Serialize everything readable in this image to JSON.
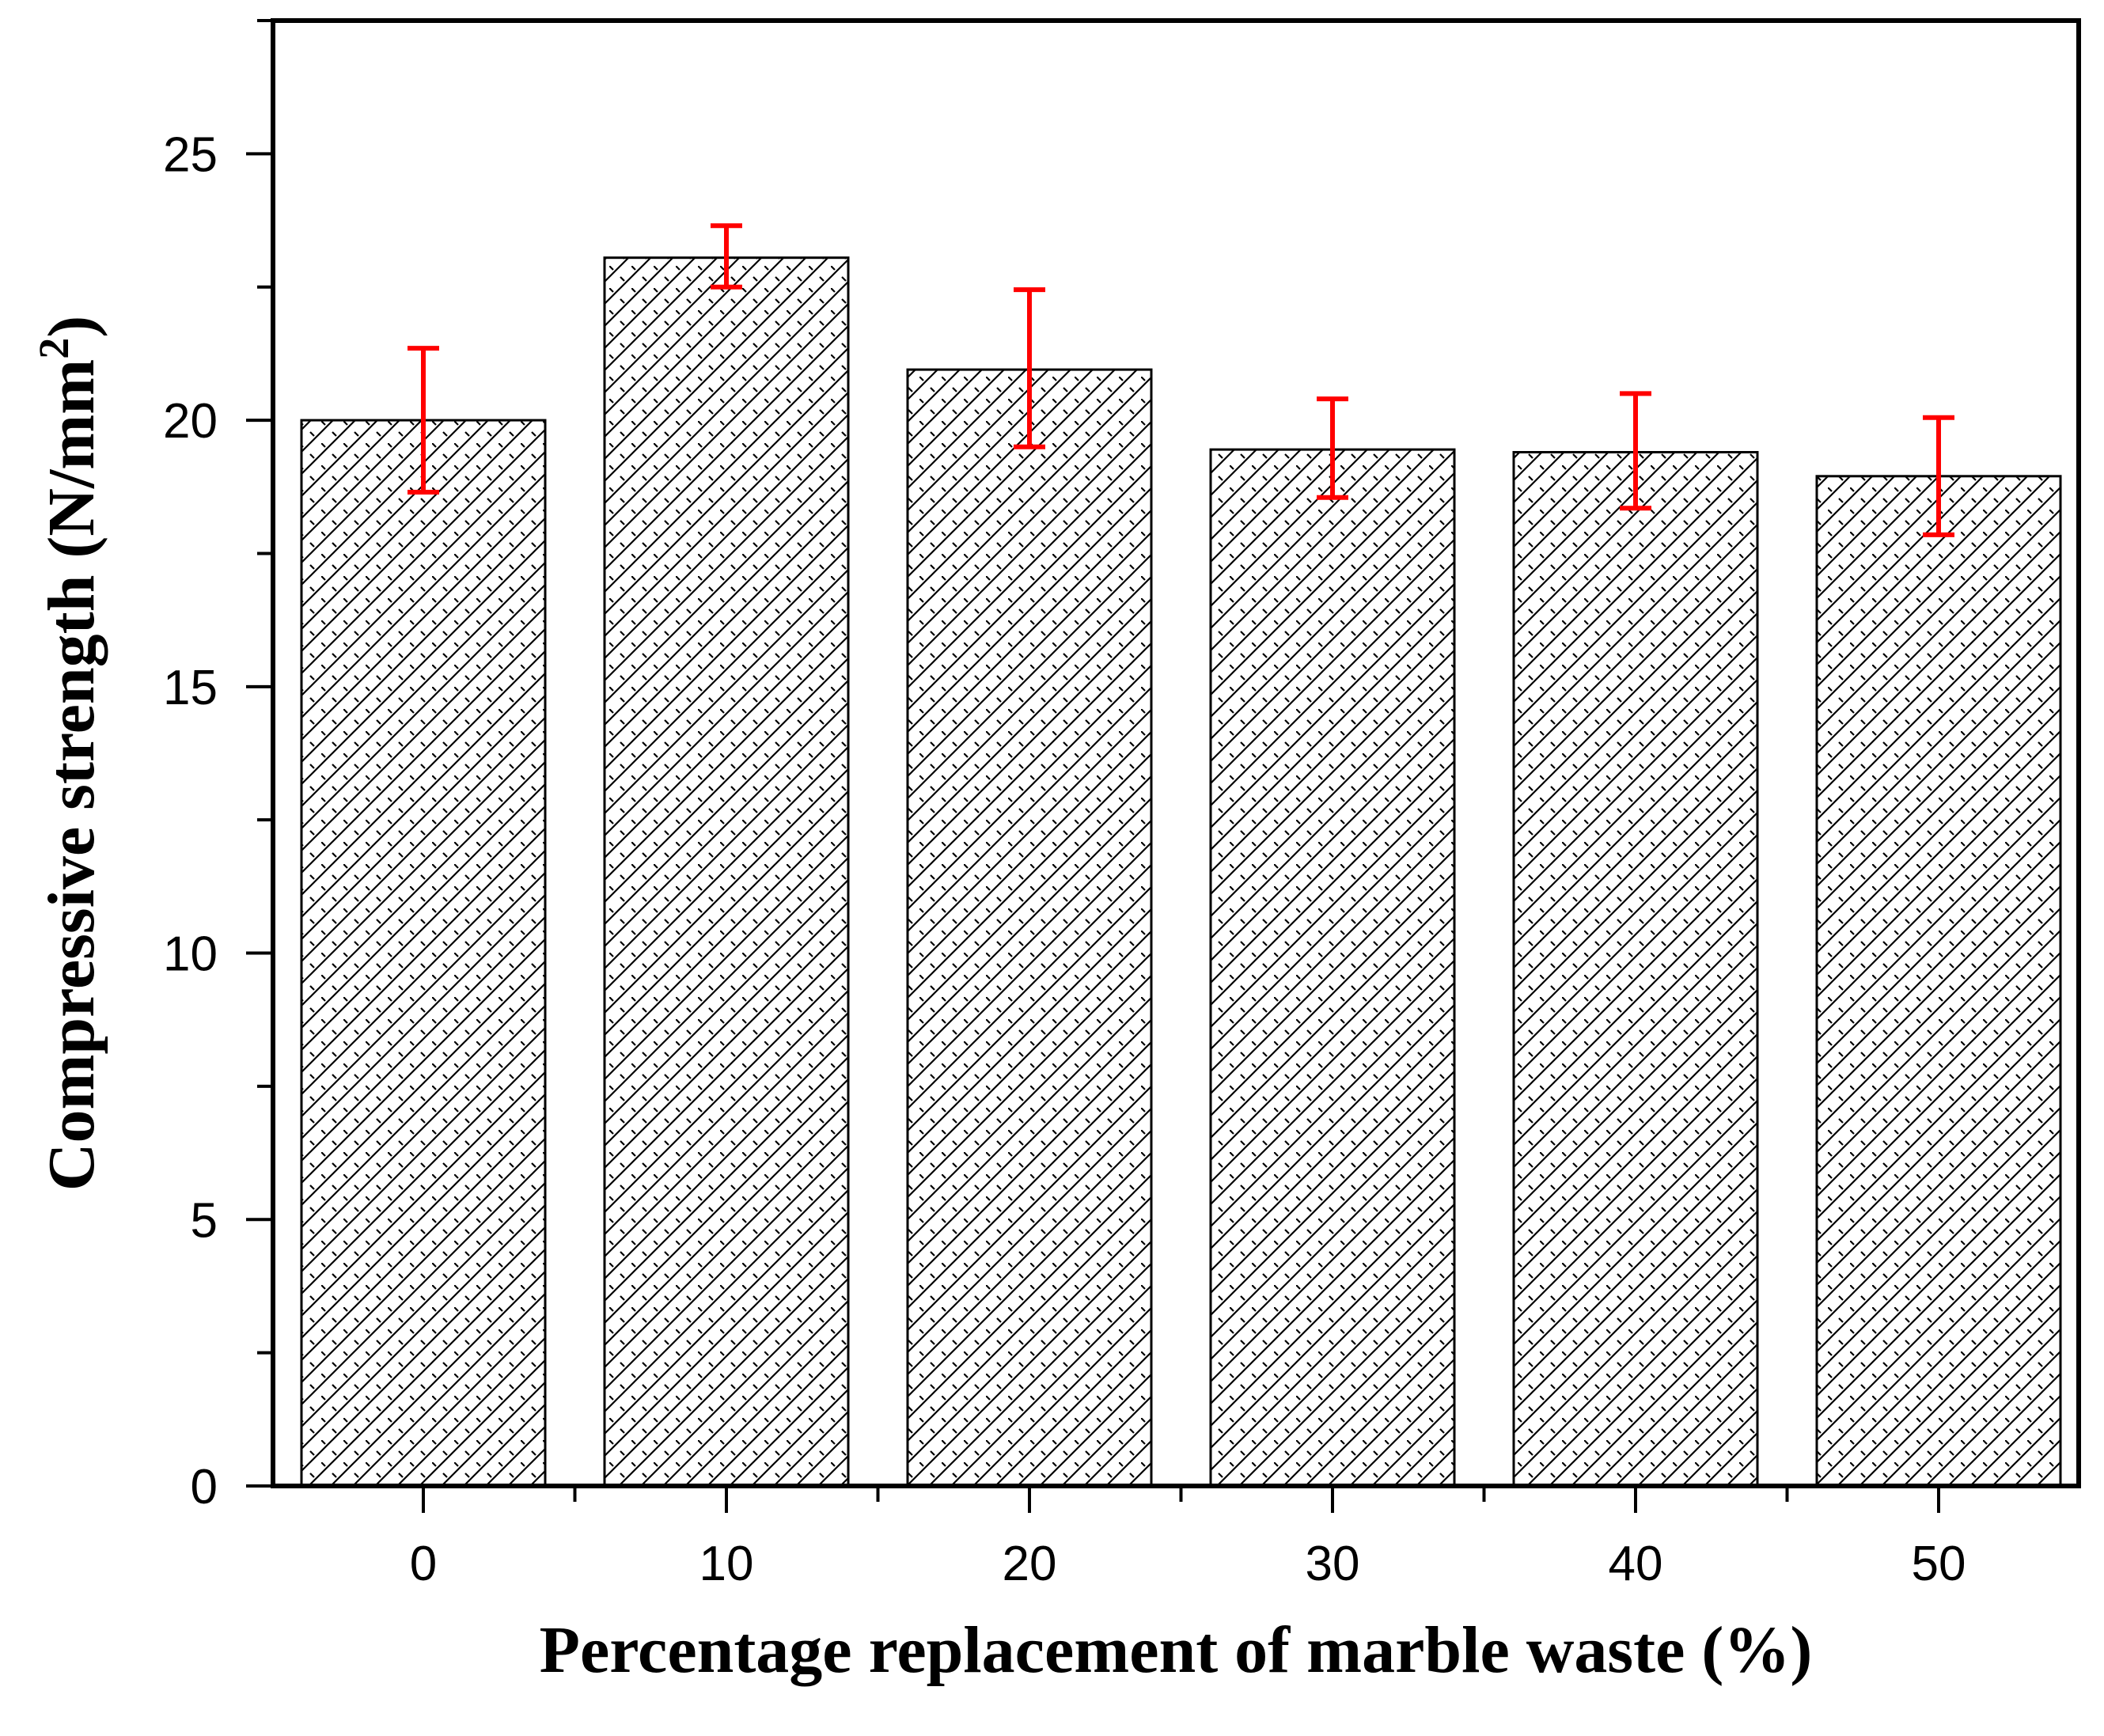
{
  "chart_data": {
    "type": "bar",
    "title": "",
    "xlabel": "Percentage replacement of marble waste (%)",
    "ylabel": "Compressive strength (N/mm",
    "ylabel_superscript": "2",
    "ylabel_close": ")",
    "categories": [
      "0",
      "10",
      "20",
      "30",
      "40",
      "50"
    ],
    "values": [
      20.0,
      23.05,
      20.95,
      19.45,
      19.4,
      18.95
    ],
    "error_upper": [
      21.35,
      23.65,
      22.45,
      20.4,
      20.5,
      20.05
    ],
    "error_lower": [
      18.65,
      22.5,
      19.5,
      18.55,
      18.35,
      17.85
    ],
    "ylim": [
      0,
      27.5
    ],
    "yticks": [
      "0",
      "5",
      "10",
      "15",
      "20",
      "25"
    ],
    "ytick_values": [
      0,
      5,
      10,
      15,
      20,
      25
    ],
    "grid": false,
    "colors": {
      "bar_fill": "#ffffff",
      "hatch": "#000000",
      "error_bar": "#ff0000",
      "axis": "#000000"
    }
  }
}
